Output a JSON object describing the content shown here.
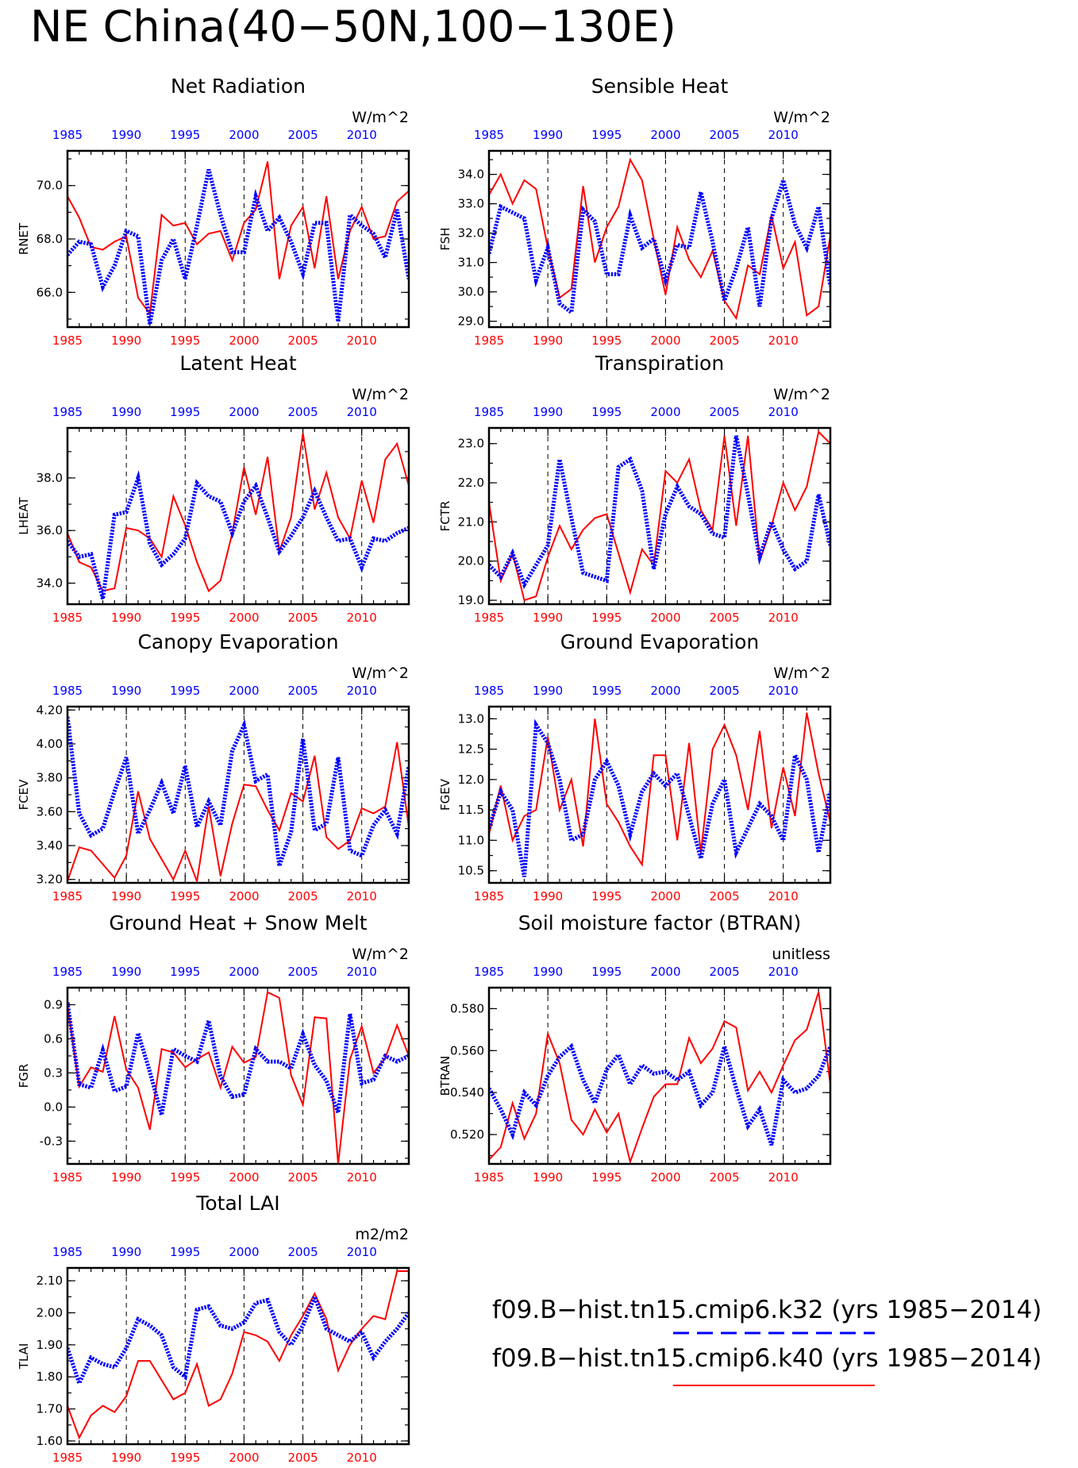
{
  "figure": {
    "title": "NE China(40−50N,100−130E)",
    "legend": [
      {
        "label": "f09.B−hist.tn15.cmip6.k32 (yrs 1985−2014)",
        "color": "#0000ff",
        "style": "dashed"
      },
      {
        "label": "f09.B−hist.tn15.cmip6.k40 (yrs 1985−2014)",
        "color": "#ff0000",
        "style": "solid"
      }
    ]
  },
  "chart_data": [
    {
      "type": "line",
      "title": "Net Radiation",
      "ylabel": "RNET",
      "units": "W/m^2",
      "xlim": [
        1985,
        2014
      ],
      "ylim": [
        64.7,
        71.3
      ],
      "yticks": [
        66.0,
        68.0,
        70.0
      ],
      "ytick_labels": [
        "66.0",
        "68.0",
        "70.0"
      ],
      "xticks": [
        1985,
        1990,
        1995,
        2000,
        2005,
        2010
      ],
      "xtick_labels": [
        "1985",
        "1990",
        "1995",
        "2000",
        "2005",
        "2010"
      ],
      "grid": "dashed vertical at 1990,1995,2000,2005,2010",
      "series": [
        {
          "name": "f09.B−hist.tn15.cmip6.k32",
          "color": "#0000ff",
          "values": [
            67.4,
            67.9,
            67.8,
            66.2,
            67.0,
            68.3,
            68.1,
            64.8,
            67.2,
            68.0,
            66.5,
            68.5,
            70.6,
            68.9,
            67.5,
            67.5,
            69.6,
            68.3,
            68.8,
            67.9,
            66.7,
            68.6,
            68.6,
            64.9,
            68.9,
            68.5,
            68.2,
            67.3,
            69.1,
            66.5
          ]
        },
        {
          "name": "f09.B−hist.tn15.cmip6.k40",
          "color": "#ff0000",
          "values": [
            69.6,
            68.8,
            67.7,
            67.6,
            67.9,
            68.1,
            65.8,
            65.2,
            68.9,
            68.5,
            68.6,
            67.8,
            68.2,
            68.3,
            67.2,
            68.6,
            69.1,
            70.9,
            66.5,
            68.5,
            69.2,
            66.9,
            69.6,
            66.5,
            68.3,
            69.2,
            68.0,
            68.1,
            69.4,
            69.8
          ]
        }
      ]
    },
    {
      "type": "line",
      "title": "Sensible Heat",
      "ylabel": "FSH",
      "units": "W/m^2",
      "xlim": [
        1985,
        2014
      ],
      "ylim": [
        28.8,
        34.8
      ],
      "yticks": [
        29.0,
        30.0,
        31.0,
        32.0,
        33.0,
        34.0
      ],
      "ytick_labels": [
        "29.0",
        "30.0",
        "31.0",
        "32.0",
        "33.0",
        "34.0"
      ],
      "xticks": [
        1985,
        1990,
        1995,
        2000,
        2005,
        2010
      ],
      "xtick_labels": [
        "1985",
        "1990",
        "1995",
        "2000",
        "2005",
        "2010"
      ],
      "grid": "dashed vertical at 1990,1995,2000,2005,2010",
      "series": [
        {
          "name": "f09.B−hist.tn15.cmip6.k32",
          "color": "#0000ff",
          "values": [
            31.3,
            32.9,
            32.7,
            32.5,
            30.4,
            31.5,
            29.6,
            29.3,
            32.8,
            32.4,
            30.6,
            30.6,
            32.6,
            31.5,
            31.8,
            30.4,
            31.6,
            31.5,
            33.4,
            31.7,
            29.7,
            30.8,
            32.2,
            29.5,
            32.5,
            33.8,
            32.3,
            31.5,
            32.9,
            30.2
          ]
        },
        {
          "name": "f09.B−hist.tn15.cmip6.k40",
          "color": "#ff0000",
          "values": [
            33.3,
            34.0,
            33.0,
            33.8,
            33.5,
            31.5,
            29.8,
            30.1,
            33.6,
            31.0,
            32.2,
            32.9,
            34.5,
            33.8,
            31.8,
            29.9,
            32.2,
            31.1,
            30.5,
            31.4,
            29.7,
            29.1,
            30.9,
            30.6,
            32.6,
            30.8,
            31.7,
            29.2,
            29.5,
            31.9
          ]
        }
      ]
    },
    {
      "type": "line",
      "title": "Latent Heat",
      "ylabel": "LHEAT",
      "units": "W/m^2",
      "xlim": [
        1985,
        2014
      ],
      "ylim": [
        33.2,
        39.9
      ],
      "yticks": [
        34.0,
        36.0,
        38.0
      ],
      "ytick_labels": [
        "34.0",
        "36.0",
        "38.0"
      ],
      "xticks": [
        1985,
        1990,
        1995,
        2000,
        2005,
        2010
      ],
      "xtick_labels": [
        "1985",
        "1990",
        "1995",
        "2000",
        "2005",
        "2010"
      ],
      "grid": "dashed vertical at 1990,1995,2000,2005,2010",
      "series": [
        {
          "name": "f09.B−hist.tn15.cmip6.k32",
          "color": "#0000ff",
          "values": [
            35.6,
            35.0,
            35.1,
            33.4,
            36.6,
            36.7,
            38.0,
            35.5,
            34.7,
            35.1,
            35.7,
            37.8,
            37.3,
            37.1,
            35.9,
            37.1,
            37.7,
            36.5,
            35.2,
            35.8,
            36.5,
            37.5,
            36.5,
            35.6,
            35.7,
            34.6,
            35.7,
            35.6,
            35.9,
            36.1
          ]
        },
        {
          "name": "f09.B−hist.tn15.cmip6.k40",
          "color": "#ff0000",
          "values": [
            35.9,
            34.8,
            34.6,
            33.7,
            33.8,
            36.1,
            36.0,
            35.7,
            35.0,
            37.3,
            36.2,
            34.8,
            33.7,
            34.1,
            35.9,
            38.4,
            36.6,
            38.8,
            35.2,
            36.5,
            39.7,
            36.8,
            38.2,
            36.5,
            35.7,
            37.9,
            36.3,
            38.7,
            39.3,
            37.7
          ]
        }
      ]
    },
    {
      "type": "line",
      "title": "Transpiration",
      "ylabel": "FCTR",
      "units": "W/m^2",
      "xlim": [
        1985,
        2014
      ],
      "ylim": [
        18.9,
        23.4
      ],
      "yticks": [
        19.0,
        20.0,
        21.0,
        22.0,
        23.0
      ],
      "ytick_labels": [
        "19.0",
        "20.0",
        "21.0",
        "22.0",
        "23.0"
      ],
      "xticks": [
        1985,
        1990,
        1995,
        2000,
        2005,
        2010
      ],
      "xtick_labels": [
        "1985",
        "1990",
        "1995",
        "2000",
        "2005",
        "2010"
      ],
      "grid": "dashed vertical at 1990,1995,2000,2005,2010",
      "series": [
        {
          "name": "f09.B−hist.tn15.cmip6.k32",
          "color": "#0000ff",
          "values": [
            19.9,
            19.6,
            20.2,
            19.4,
            19.9,
            20.4,
            22.6,
            21.1,
            19.7,
            19.6,
            19.5,
            22.4,
            22.6,
            21.8,
            19.8,
            21.2,
            21.9,
            21.4,
            21.2,
            20.7,
            20.6,
            23.2,
            21.7,
            20.1,
            21.0,
            20.3,
            19.8,
            20.0,
            21.7,
            20.4
          ]
        },
        {
          "name": "f09.B−hist.tn15.cmip6.k40",
          "color": "#ff0000",
          "values": [
            21.5,
            19.5,
            20.2,
            19.0,
            19.1,
            20.1,
            20.9,
            20.3,
            20.8,
            21.1,
            21.2,
            20.2,
            19.2,
            20.3,
            19.9,
            22.3,
            22.0,
            22.6,
            21.3,
            20.8,
            23.2,
            20.9,
            23.2,
            20.0,
            20.9,
            22.0,
            21.3,
            21.9,
            23.3,
            23.0
          ]
        }
      ]
    },
    {
      "type": "line",
      "title": "Canopy Evaporation",
      "ylabel": "FCEV",
      "units": "W/m^2",
      "xlim": [
        1985,
        2014
      ],
      "ylim": [
        3.18,
        4.22
      ],
      "yticks": [
        3.2,
        3.4,
        3.6,
        3.8,
        4.0,
        4.2
      ],
      "ytick_labels": [
        "3.20",
        "3.40",
        "3.60",
        "3.80",
        "4.00",
        "4.20"
      ],
      "xticks": [
        1985,
        1990,
        1995,
        2000,
        2005,
        2010
      ],
      "xtick_labels": [
        "1985",
        "1990",
        "1995",
        "2000",
        "2005",
        "2010"
      ],
      "grid": "dashed vertical at 1990,1995,2000,2005,2010",
      "series": [
        {
          "name": "f09.B−hist.tn15.cmip6.k32",
          "color": "#0000ff",
          "values": [
            4.16,
            3.59,
            3.46,
            3.5,
            3.72,
            3.92,
            3.47,
            3.61,
            3.77,
            3.59,
            3.87,
            3.51,
            3.66,
            3.52,
            3.96,
            4.11,
            3.78,
            3.82,
            3.28,
            3.48,
            4.03,
            3.49,
            3.53,
            3.92,
            3.37,
            3.34,
            3.52,
            3.61,
            3.47,
            3.87
          ]
        },
        {
          "name": "f09.B−hist.tn15.cmip6.k40",
          "color": "#ff0000",
          "values": [
            3.19,
            3.39,
            3.37,
            3.29,
            3.21,
            3.34,
            3.72,
            3.44,
            3.32,
            3.2,
            3.37,
            3.19,
            3.63,
            3.22,
            3.53,
            3.76,
            3.75,
            3.61,
            3.49,
            3.71,
            3.66,
            3.93,
            3.45,
            3.38,
            3.43,
            3.62,
            3.59,
            3.63,
            4.01,
            3.51
          ]
        }
      ]
    },
    {
      "type": "line",
      "title": "Ground Evaporation",
      "ylabel": "FGEV",
      "units": "W/m^2",
      "xlim": [
        1985,
        2014
      ],
      "ylim": [
        10.3,
        13.2
      ],
      "yticks": [
        10.5,
        11.0,
        11.5,
        12.0,
        12.5,
        13.0
      ],
      "ytick_labels": [
        "10.5",
        "11.0",
        "11.5",
        "12.0",
        "12.5",
        "13.0"
      ],
      "xticks": [
        1985,
        1990,
        1995,
        2000,
        2005,
        2010
      ],
      "xtick_labels": [
        "1985",
        "1990",
        "1995",
        "2000",
        "2005",
        "2010"
      ],
      "grid": "dashed vertical at 1990,1995,2000,2005,2010",
      "series": [
        {
          "name": "f09.B−hist.tn15.cmip6.k32",
          "color": "#0000ff",
          "values": [
            11.2,
            11.8,
            11.5,
            10.4,
            12.9,
            12.6,
            12.0,
            11.0,
            11.1,
            12.0,
            12.3,
            11.9,
            11.1,
            11.8,
            12.1,
            11.9,
            12.1,
            11.4,
            10.7,
            11.6,
            12.0,
            10.8,
            11.2,
            11.6,
            11.4,
            11.0,
            12.4,
            12.0,
            10.8,
            11.8
          ]
        },
        {
          "name": "f09.B−hist.tn15.cmip6.k40",
          "color": "#ff0000",
          "values": [
            11.1,
            11.9,
            11.0,
            11.4,
            11.5,
            12.7,
            11.5,
            12.0,
            10.9,
            13.0,
            11.6,
            11.3,
            10.9,
            10.6,
            12.4,
            12.4,
            11.0,
            12.6,
            10.8,
            12.5,
            12.9,
            12.4,
            11.5,
            12.8,
            11.2,
            12.2,
            11.4,
            13.1,
            12.1,
            11.3
          ]
        }
      ]
    },
    {
      "type": "line",
      "title": "Ground Heat + Snow Melt",
      "ylabel": "FGR",
      "units": "W/m^2",
      "xlim": [
        1985,
        2014
      ],
      "ylim": [
        -0.5,
        1.05
      ],
      "yticks": [
        -0.3,
        0.0,
        0.3,
        0.6,
        0.9
      ],
      "ytick_labels": [
        "-0.3",
        "0.0",
        "0.3",
        "0.6",
        "0.9"
      ],
      "xticks": [
        1985,
        1990,
        1995,
        2000,
        2005,
        2010
      ],
      "xtick_labels": [
        "1985",
        "1990",
        "1995",
        "2000",
        "2005",
        "2010"
      ],
      "grid": "dashed vertical at 1990,1995,2000,2005,2010",
      "series": [
        {
          "name": "f09.B−hist.tn15.cmip6.k32",
          "color": "#0000ff",
          "values": [
            0.92,
            0.2,
            0.17,
            0.5,
            0.14,
            0.18,
            0.65,
            0.31,
            -0.07,
            0.51,
            0.45,
            0.4,
            0.76,
            0.27,
            0.09,
            0.11,
            0.51,
            0.4,
            0.4,
            0.34,
            0.64,
            0.37,
            0.23,
            -0.05,
            0.82,
            0.21,
            0.24,
            0.45,
            0.4,
            0.45
          ]
        },
        {
          "name": "f09.B−hist.tn15.cmip6.k40",
          "color": "#ff0000",
          "values": [
            0.9,
            0.18,
            0.35,
            0.31,
            0.8,
            0.33,
            0.17,
            -0.2,
            0.51,
            0.48,
            0.35,
            0.42,
            0.48,
            0.17,
            0.53,
            0.39,
            0.44,
            1.01,
            0.96,
            0.28,
            0.02,
            0.79,
            0.78,
            -0.5,
            0.42,
            0.71,
            0.3,
            0.43,
            0.72,
            0.45
          ]
        }
      ]
    },
    {
      "type": "line",
      "title": "Soil moisture factor (BTRAN)",
      "ylabel": "BTRAN",
      "units": "unitless",
      "xlim": [
        1985,
        2014
      ],
      "ylim": [
        0.506,
        0.59
      ],
      "yticks": [
        0.52,
        0.54,
        0.56,
        0.58
      ],
      "ytick_labels": [
        "0.520",
        "0.540",
        "0.560",
        "0.580"
      ],
      "xticks": [
        1985,
        1990,
        1995,
        2000,
        2005,
        2010
      ],
      "xtick_labels": [
        "1985",
        "1990",
        "1995",
        "2000",
        "2005",
        "2010"
      ],
      "grid": "dashed vertical at 1990,1995,2000,2005,2010",
      "series": [
        {
          "name": "f09.B−hist.tn15.cmip6.k32",
          "color": "#0000ff",
          "values": [
            0.542,
            0.532,
            0.52,
            0.54,
            0.534,
            0.548,
            0.557,
            0.562,
            0.546,
            0.535,
            0.551,
            0.558,
            0.544,
            0.553,
            0.549,
            0.55,
            0.546,
            0.55,
            0.534,
            0.54,
            0.562,
            0.542,
            0.524,
            0.532,
            0.515,
            0.546,
            0.54,
            0.542,
            0.548,
            0.562
          ]
        },
        {
          "name": "f09.B−hist.tn15.cmip6.k40",
          "color": "#ff0000",
          "values": [
            0.508,
            0.514,
            0.535,
            0.518,
            0.53,
            0.568,
            0.554,
            0.527,
            0.52,
            0.532,
            0.521,
            0.53,
            0.507,
            0.523,
            0.538,
            0.544,
            0.544,
            0.566,
            0.554,
            0.561,
            0.574,
            0.571,
            0.541,
            0.55,
            0.54,
            0.553,
            0.565,
            0.57,
            0.588,
            0.544
          ]
        }
      ]
    },
    {
      "type": "line",
      "title": "Total LAI",
      "ylabel": "TLAI",
      "units": "m2/m2",
      "xlim": [
        1985,
        2014
      ],
      "ylim": [
        1.59,
        2.14
      ],
      "yticks": [
        1.6,
        1.7,
        1.8,
        1.9,
        2.0,
        2.1
      ],
      "ytick_labels": [
        "1.60",
        "1.70",
        "1.80",
        "1.90",
        "2.00",
        "2.10"
      ],
      "xticks": [
        1985,
        1990,
        1995,
        2000,
        2005,
        2010
      ],
      "xtick_labels": [
        "1985",
        "1990",
        "1995",
        "2000",
        "2005",
        "2010"
      ],
      "grid": "dashed vertical at 1990,1995,2000,2005,2010",
      "series": [
        {
          "name": "f09.B−hist.tn15.cmip6.k32",
          "color": "#0000ff",
          "values": [
            1.89,
            1.78,
            1.86,
            1.84,
            1.83,
            1.89,
            1.98,
            1.96,
            1.93,
            1.83,
            1.8,
            2.01,
            2.02,
            1.96,
            1.95,
            1.97,
            2.03,
            2.04,
            1.94,
            1.9,
            1.96,
            2.05,
            1.95,
            1.93,
            1.91,
            1.94,
            1.86,
            1.91,
            1.95,
            2.0
          ]
        },
        {
          "name": "f09.B−hist.tn15.cmip6.k40",
          "color": "#ff0000",
          "values": [
            1.71,
            1.61,
            1.68,
            1.71,
            1.69,
            1.74,
            1.85,
            1.85,
            1.79,
            1.73,
            1.75,
            1.84,
            1.71,
            1.73,
            1.81,
            1.94,
            1.93,
            1.91,
            1.85,
            1.93,
            1.99,
            2.06,
            1.98,
            1.82,
            1.9,
            1.95,
            1.99,
            1.98,
            2.13,
            2.13
          ]
        }
      ]
    }
  ]
}
